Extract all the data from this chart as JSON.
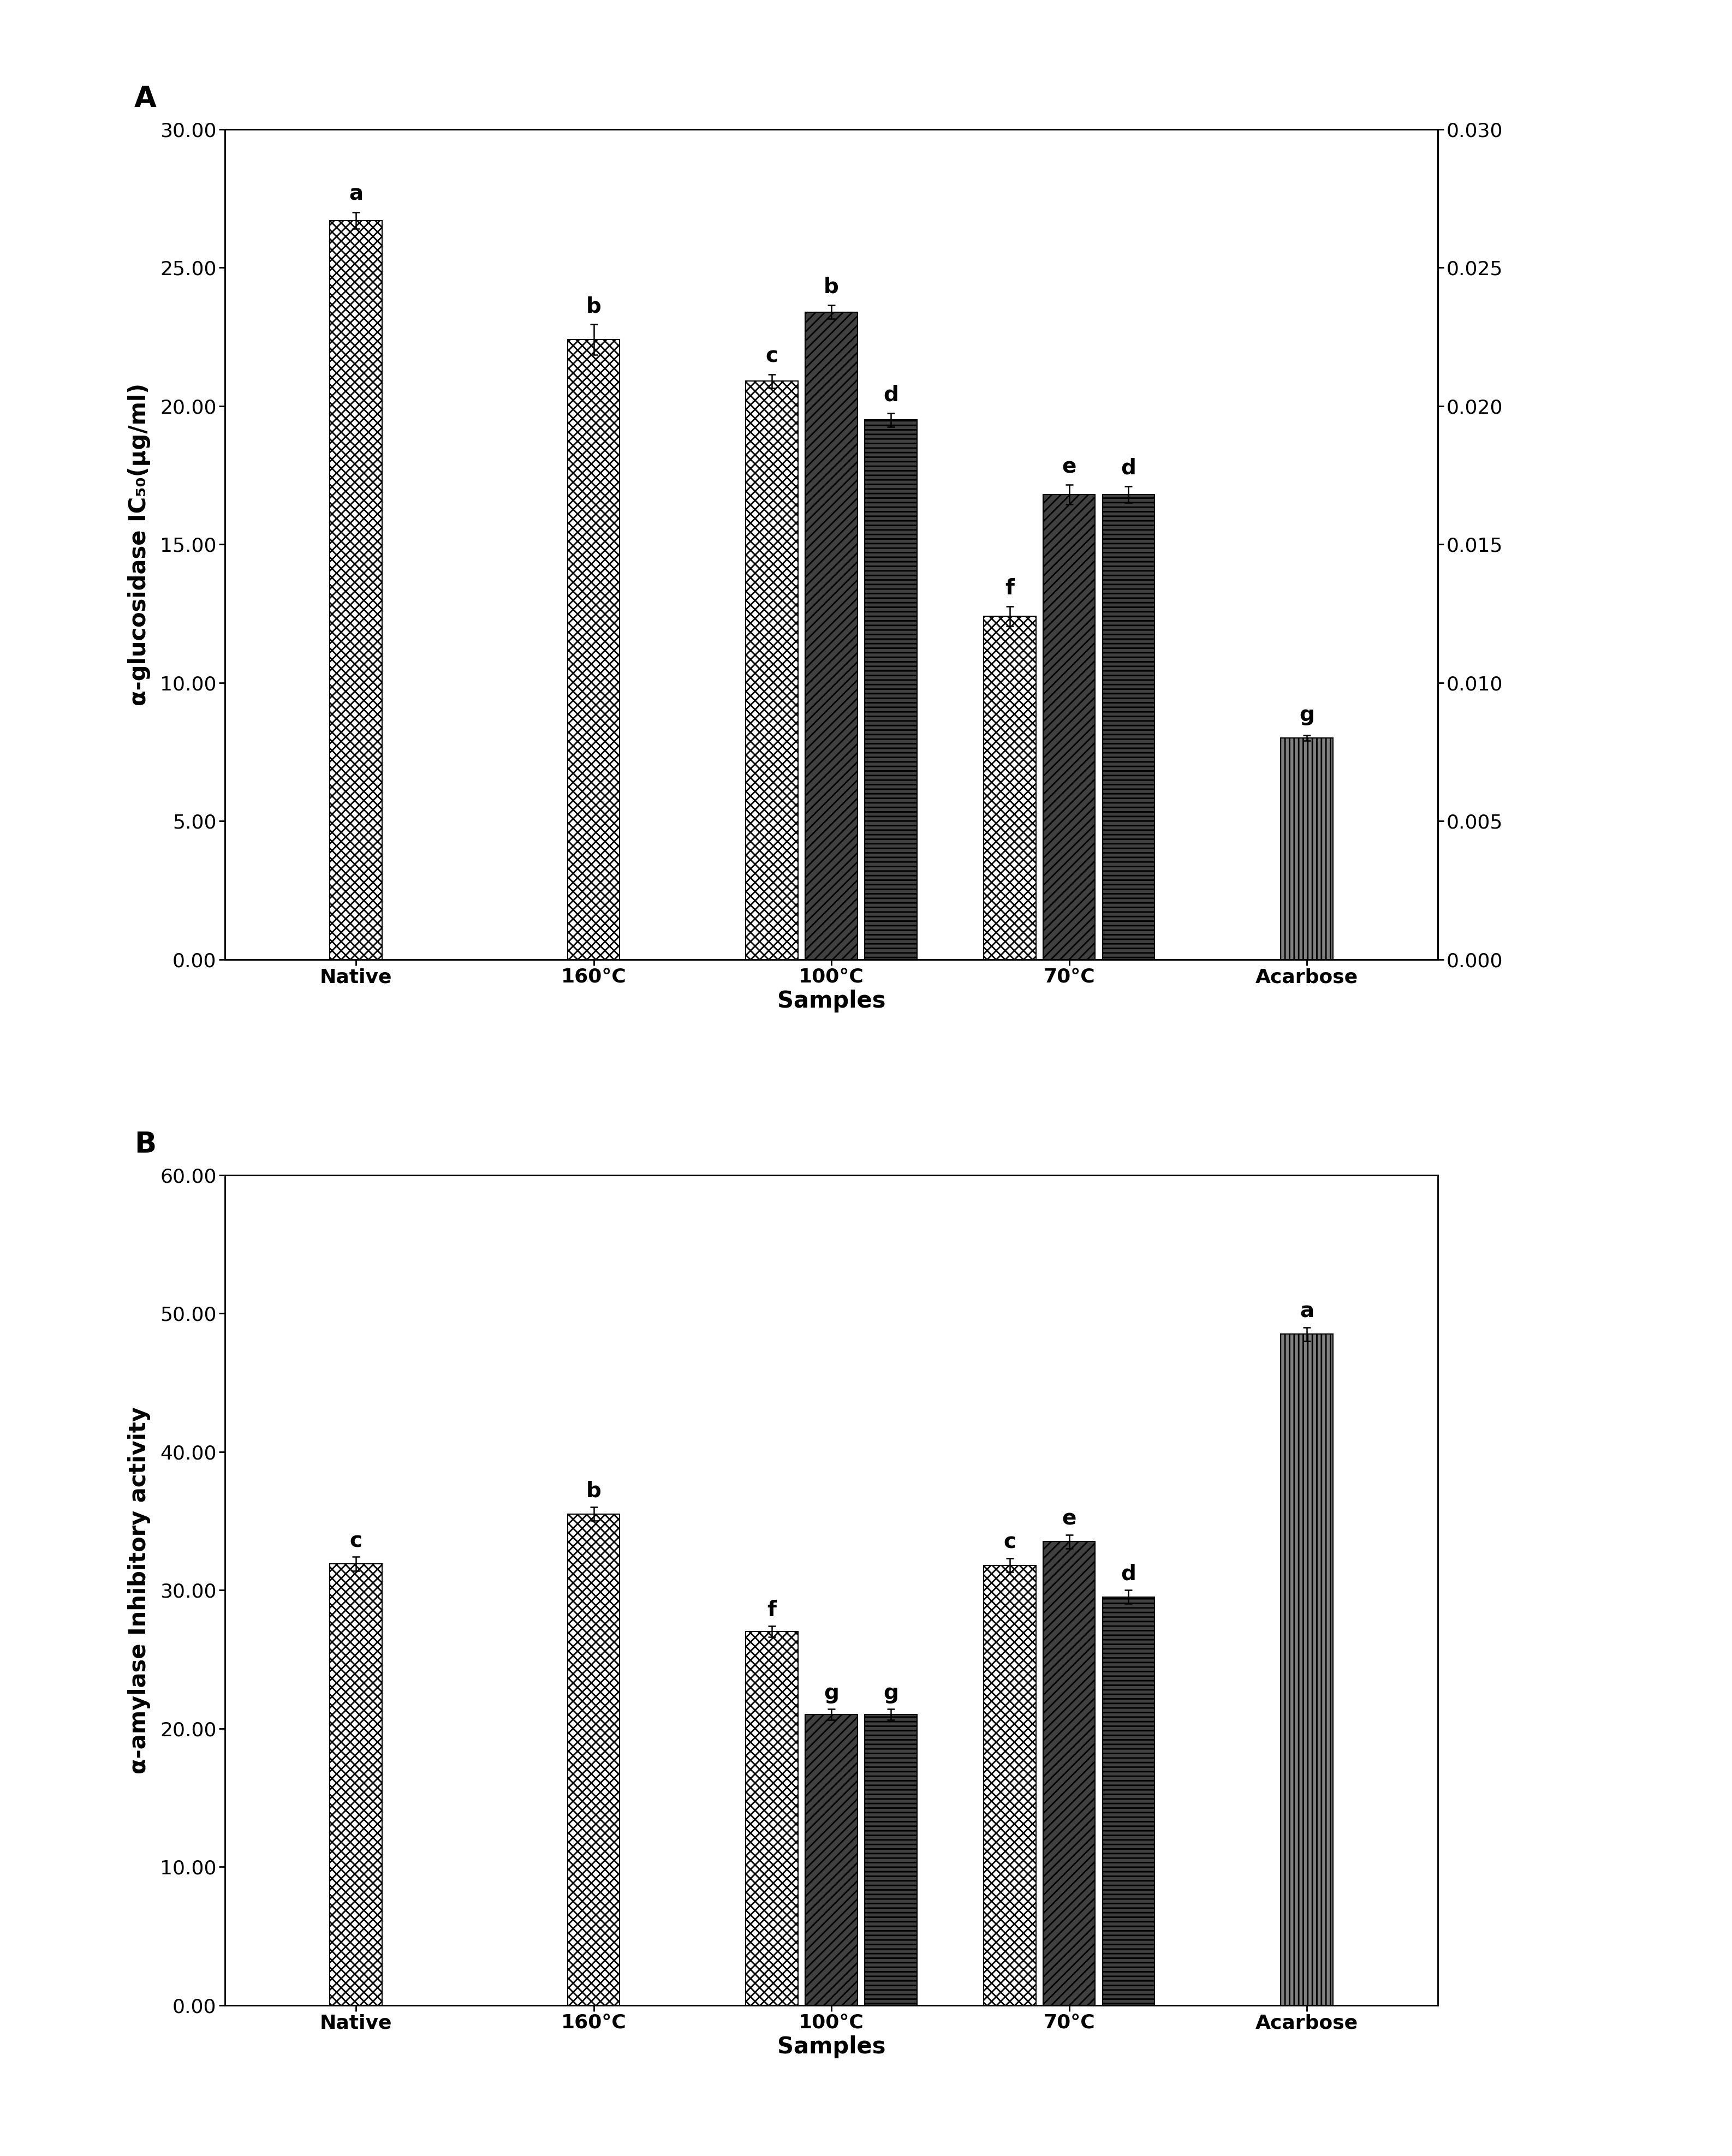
{
  "panel_A": {
    "ylabel_left": "α-glucosidase IC₅₀(μg/ml)",
    "xlabel": "Samples",
    "ylim_left": [
      0,
      30.0
    ],
    "ylim_right": [
      0,
      0.03
    ],
    "yticks_left": [
      0.0,
      5.0,
      10.0,
      15.0,
      20.0,
      25.0,
      30.0
    ],
    "yticks_right": [
      0.0,
      0.005,
      0.01,
      0.015,
      0.02,
      0.025,
      0.03
    ],
    "groups": [
      "Native",
      "160°C",
      "100°C",
      "70°C",
      "Acarbose"
    ],
    "bars": {
      "Native": {
        "30%": 26.7,
        "40%": null,
        "60%": null,
        "Acarbose": null
      },
      "160°C": {
        "30%": 22.4,
        "40%": null,
        "60%": null,
        "Acarbose": null
      },
      "100°C": {
        "30%": 20.9,
        "40%": 23.4,
        "60%": 19.5,
        "Acarbose": null
      },
      "70°C": {
        "30%": 12.4,
        "40%": 16.8,
        "60%": 16.8,
        "Acarbose": null
      },
      "Acarbose": {
        "30%": null,
        "40%": null,
        "60%": null,
        "Acarbose": 8.0
      }
    },
    "errors": {
      "Native": {
        "30%": 0.3,
        "40%": null,
        "60%": null,
        "Acarbose": null
      },
      "160°C": {
        "30%": 0.55,
        "40%": null,
        "60%": null,
        "Acarbose": null
      },
      "100°C": {
        "30%": 0.25,
        "40%": 0.25,
        "60%": 0.25,
        "Acarbose": null
      },
      "70°C": {
        "30%": 0.35,
        "40%": 0.35,
        "60%": 0.3,
        "Acarbose": null
      },
      "Acarbose": {
        "30%": null,
        "40%": null,
        "60%": null,
        "Acarbose": 0.1
      }
    },
    "labels": {
      "Native": {
        "30%": "a",
        "40%": null,
        "60%": null,
        "Acarbose": null
      },
      "160°C": {
        "30%": "b",
        "40%": null,
        "60%": null,
        "Acarbose": null
      },
      "100°C": {
        "30%": "c",
        "40%": "b",
        "60%": "d",
        "Acarbose": null
      },
      "70°C": {
        "30%": "f",
        "40%": "e",
        "60%": "d",
        "Acarbose": null
      },
      "Acarbose": {
        "30%": null,
        "40%": null,
        "60%": null,
        "Acarbose": "g"
      }
    },
    "acarbose_scale_factor": 1000
  },
  "panel_B": {
    "ylabel": "α-amylase Inhibitory activity",
    "xlabel": "Samples",
    "ylim": [
      0,
      60.0
    ],
    "yticks": [
      0.0,
      10.0,
      20.0,
      30.0,
      40.0,
      50.0,
      60.0
    ],
    "groups": [
      "Native",
      "160°C",
      "100°C",
      "70°C",
      "Acarbose"
    ],
    "bars": {
      "Native": {
        "30%": 31.9,
        "40%": null,
        "60%": null,
        "Acarbose": null
      },
      "160°C": {
        "30%": 35.5,
        "40%": null,
        "60%": null,
        "Acarbose": null
      },
      "100°C": {
        "30%": 27.0,
        "40%": 21.0,
        "60%": 21.0,
        "Acarbose": null
      },
      "70°C": {
        "30%": 31.8,
        "40%": 33.5,
        "60%": 29.5,
        "Acarbose": null
      },
      "Acarbose": {
        "30%": null,
        "40%": null,
        "60%": null,
        "Acarbose": 48.5
      }
    },
    "errors": {
      "Native": {
        "30%": 0.5,
        "40%": null,
        "60%": null,
        "Acarbose": null
      },
      "160°C": {
        "30%": 0.5,
        "40%": null,
        "60%": null,
        "Acarbose": null
      },
      "100°C": {
        "30%": 0.4,
        "40%": 0.4,
        "60%": 0.4,
        "Acarbose": null
      },
      "70°C": {
        "30%": 0.5,
        "40%": 0.5,
        "60%": 0.5,
        "Acarbose": null
      },
      "Acarbose": {
        "30%": null,
        "40%": null,
        "60%": null,
        "Acarbose": 0.5
      }
    },
    "labels": {
      "Native": {
        "30%": "c",
        "40%": null,
        "60%": null,
        "Acarbose": null
      },
      "160°C": {
        "30%": "b",
        "40%": null,
        "60%": null,
        "Acarbose": null
      },
      "100°C": {
        "30%": "f",
        "40%": "g",
        "60%": "g",
        "Acarbose": null
      },
      "70°C": {
        "30%": "c",
        "40%": "e",
        "60%": "d",
        "Acarbose": null
      },
      "Acarbose": {
        "30%": null,
        "40%": null,
        "60%": null,
        "Acarbose": "a"
      }
    }
  },
  "bar_width": 0.25,
  "label_fontsize": 28,
  "tick_fontsize": 26,
  "axis_label_fontsize": 30,
  "panel_label_fontsize": 38,
  "legend_fontsize": 24,
  "hatch_linewidth": 2.0
}
